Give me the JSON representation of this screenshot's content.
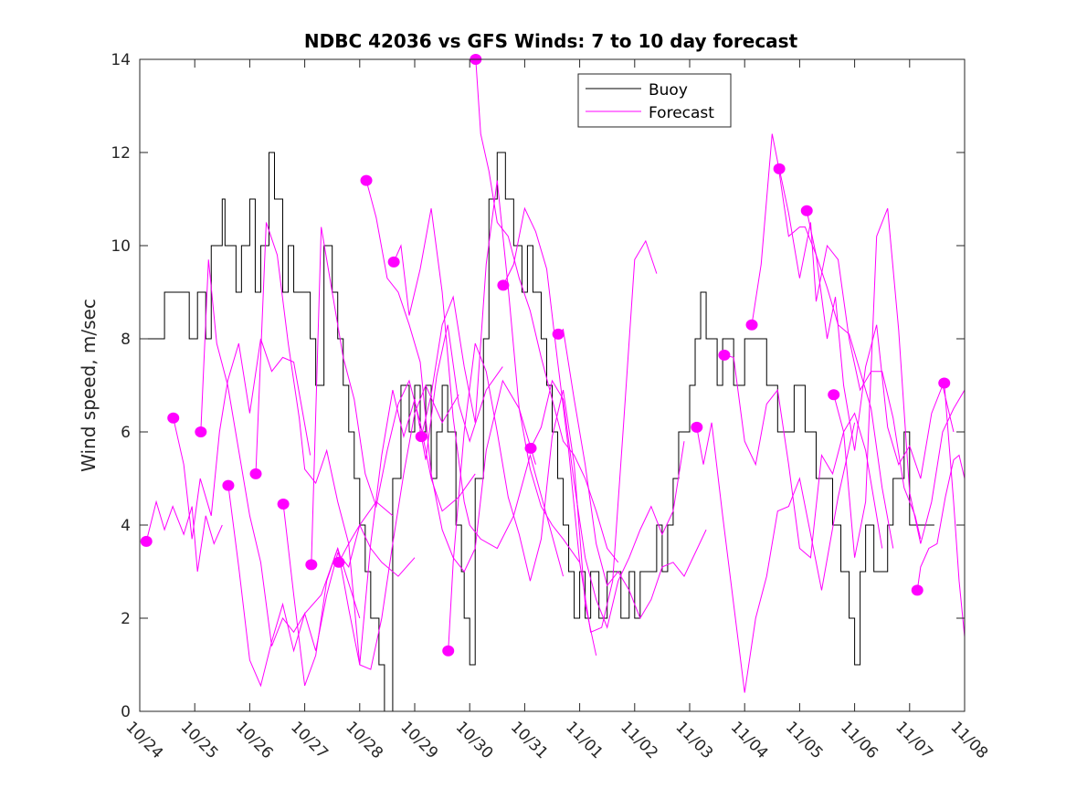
{
  "chart_data": {
    "type": "line",
    "title": "NDBC 42036 vs GFS Winds: 7 to 10 day forecast",
    "xlabel": "",
    "ylabel": "Wind speed, m/sec",
    "x_units": "days since 10/24",
    "xlim": [
      0,
      15
    ],
    "ylim": [
      0,
      14
    ],
    "x_ticks": [
      0,
      1,
      2,
      3,
      4,
      5,
      6,
      7,
      8,
      9,
      10,
      11,
      12,
      13,
      14,
      15
    ],
    "x_tick_labels": [
      "10/24",
      "10/25",
      "10/26",
      "10/27",
      "10/28",
      "10/29",
      "10/30",
      "10/31",
      "11/01",
      "11/02",
      "11/03",
      "11/04",
      "11/05",
      "11/06",
      "11/07",
      "11/08"
    ],
    "y_ticks": [
      0,
      2,
      4,
      6,
      8,
      10,
      12,
      14
    ],
    "y_tick_labels": [
      "0",
      "2",
      "4",
      "6",
      "8",
      "10",
      "12",
      "14"
    ],
    "grid": false,
    "legend": {
      "placement": "top-center",
      "entries": [
        {
          "label": "Buoy",
          "color": "#000000"
        },
        {
          "label": "Forecast",
          "color": "#ff00ff"
        }
      ]
    },
    "series": [
      {
        "name": "Buoy",
        "color": "#000000",
        "style": "step",
        "x": [
          0,
          0.4,
          0.45,
          0.9,
          1.0,
          1.05,
          1.2,
          1.3,
          1.5,
          1.55,
          1.7,
          1.75,
          1.85,
          2.0,
          2.1,
          2.2,
          2.35,
          2.45,
          2.6,
          2.7,
          2.8,
          2.95,
          3.0,
          3.1,
          3.2,
          3.35,
          3.5,
          3.6,
          3.7,
          3.8,
          3.9,
          4.0,
          4.1,
          4.2,
          4.35,
          4.45,
          4.6,
          4.75,
          4.9,
          5.0,
          5.1,
          5.2,
          5.3,
          5.4,
          5.5,
          5.6,
          5.75,
          5.85,
          5.9,
          6.0,
          6.1,
          6.25,
          6.35,
          6.5,
          6.65,
          6.8,
          6.95,
          7.05,
          7.15,
          7.3,
          7.4,
          7.5,
          7.6,
          7.7,
          7.8,
          7.9,
          8.0,
          8.1,
          8.2,
          8.35,
          8.5,
          8.6,
          8.75,
          8.9,
          9.0,
          9.1,
          9.25,
          9.4,
          9.5,
          9.6,
          9.7,
          9.8,
          9.9,
          10.0,
          10.1,
          10.2,
          10.3,
          10.4,
          10.5,
          10.6,
          10.7,
          10.8,
          10.9,
          11.0,
          11.2,
          11.4,
          11.6,
          11.75,
          11.9,
          12.0,
          12.1,
          12.2,
          12.3,
          12.5,
          12.6,
          12.75,
          12.9,
          13.0,
          13.1,
          13.2,
          13.35,
          13.5,
          13.6,
          13.7,
          13.8,
          13.9,
          14.0,
          14.1,
          14.2,
          14.35
        ],
        "values": [
          8,
          8,
          9,
          8,
          8,
          9,
          8,
          10,
          11,
          10,
          10,
          9,
          10,
          11,
          9,
          10,
          12,
          11,
          9,
          10,
          9,
          9,
          9,
          8,
          7,
          10,
          9,
          8,
          7,
          6,
          5,
          4,
          3,
          2,
          1,
          0,
          5,
          7,
          6,
          7,
          6,
          7,
          5,
          6,
          7,
          6,
          4,
          3,
          2,
          1,
          5,
          8,
          11,
          12,
          11,
          10,
          9,
          10,
          9,
          8,
          7,
          6,
          5,
          4,
          3,
          2,
          3,
          2,
          3,
          2,
          3,
          3,
          2,
          3,
          2,
          3,
          3,
          4,
          3,
          4,
          5,
          6,
          6,
          7,
          8,
          9,
          8,
          8,
          7,
          8,
          8,
          7,
          7,
          8,
          8,
          7,
          6,
          6,
          7,
          7,
          6,
          6,
          5,
          5,
          4,
          3,
          2,
          1,
          3,
          4,
          3,
          3,
          4,
          5,
          5,
          6,
          4,
          4,
          4,
          4
        ],
        "note": "approximate stepped hourly buoy record; x in days since 10/24"
      }
    ],
    "forecasts": [
      {
        "start_x": 0.12,
        "x": [
          0.12,
          0.3,
          0.45,
          0.6,
          0.8,
          0.95,
          1.05,
          1.2,
          1.35,
          1.5
        ],
        "values": [
          3.65,
          4.5,
          3.9,
          4.4,
          3.8,
          4.4,
          3.0,
          4.2,
          3.6,
          4.0
        ],
        "marker_value": 3.65
      },
      {
        "start_x": 0.61,
        "x": [
          0.61,
          0.8,
          0.95,
          1.1,
          1.3,
          1.45,
          1.6,
          1.8,
          2.0,
          2.2,
          2.4,
          2.6,
          2.8,
          3.1
        ],
        "values": [
          6.3,
          5.3,
          3.7,
          5.0,
          4.2,
          6.0,
          7.1,
          7.9,
          6.4,
          8.0,
          7.3,
          7.6,
          7.5,
          5.5
        ],
        "marker_value": 6.3
      },
      {
        "start_x": 1.11,
        "x": [
          1.11,
          1.25,
          1.4,
          1.6,
          1.8,
          2.0,
          2.2,
          2.4,
          2.6,
          2.8,
          3.0,
          3.3,
          3.6,
          4.0
        ],
        "values": [
          6.0,
          9.7,
          7.9,
          7.0,
          5.6,
          4.2,
          3.2,
          1.4,
          2.0,
          1.7,
          2.1,
          2.5,
          3.5,
          2.0
        ],
        "marker_value": 6.0
      },
      {
        "start_x": 1.61,
        "x": [
          1.61,
          1.8,
          2.0,
          2.2,
          2.4,
          2.6,
          2.8,
          3.0,
          3.2,
          3.4,
          3.6,
          3.8,
          4.0,
          4.3,
          4.6
        ],
        "values": [
          4.85,
          3.1,
          1.1,
          0.55,
          1.5,
          2.3,
          1.3,
          2.1,
          1.3,
          2.5,
          3.4,
          3.1,
          4.0,
          4.5,
          4.2
        ],
        "marker_value": 4.85
      },
      {
        "start_x": 2.11,
        "x": [
          2.11,
          2.3,
          2.5,
          2.7,
          2.9,
          3.0,
          3.2,
          3.4,
          3.6,
          3.8,
          4.0,
          4.2,
          4.4,
          4.7,
          5.0
        ],
        "values": [
          5.1,
          10.5,
          9.8,
          7.9,
          6.3,
          5.2,
          4.9,
          5.6,
          4.5,
          3.6,
          4.0,
          3.5,
          3.2,
          2.9,
          3.3
        ],
        "marker_value": 5.1
      },
      {
        "start_x": 2.61,
        "x": [
          2.61,
          2.8,
          3.0,
          3.2,
          3.4,
          3.6,
          3.8,
          4.0,
          4.2,
          4.4,
          4.6,
          4.8,
          5.0,
          5.2,
          5.5,
          5.8
        ],
        "values": [
          4.45,
          2.5,
          0.55,
          1.2,
          2.8,
          3.5,
          2.2,
          1.0,
          0.9,
          2.0,
          3.6,
          5.1,
          6.4,
          7.0,
          6.2,
          6.8
        ],
        "marker_value": 4.45
      },
      {
        "start_x": 3.12,
        "x": [
          3.12,
          3.3,
          3.5,
          3.7,
          3.9,
          4.1,
          4.3,
          4.5,
          4.7,
          4.9,
          5.1,
          5.3,
          5.5,
          5.8,
          6.1
        ],
        "values": [
          3.15,
          10.4,
          9.0,
          7.6,
          6.7,
          5.1,
          4.4,
          5.6,
          6.6,
          7.1,
          6.2,
          5.0,
          4.3,
          4.6,
          5.1
        ],
        "marker_value": 3.15
      },
      {
        "start_x": 3.62,
        "x": [
          3.62,
          3.8,
          4.0,
          4.2,
          4.4,
          4.6,
          4.8,
          5.0,
          5.2,
          5.4,
          5.6,
          5.8,
          6.0,
          6.3,
          6.6
        ],
        "values": [
          3.2,
          3.6,
          1.0,
          3.6,
          5.5,
          6.9,
          5.9,
          6.7,
          5.4,
          7.2,
          8.3,
          6.6,
          5.8,
          6.9,
          7.4
        ],
        "marker_value": 3.2
      },
      {
        "start_x": 4.12,
        "x": [
          4.12,
          4.3,
          4.5,
          4.7,
          4.9,
          5.1,
          5.3,
          5.5,
          5.7,
          5.9,
          6.1,
          6.3,
          6.6,
          6.9,
          7.2
        ],
        "values": [
          11.4,
          10.6,
          9.3,
          9.0,
          8.3,
          7.5,
          5.1,
          3.9,
          3.3,
          3.0,
          3.5,
          5.6,
          7.1,
          6.5,
          5.3
        ],
        "marker_value": 11.4
      },
      {
        "start_x": 4.62,
        "x": [
          4.62,
          4.75,
          4.9,
          5.1,
          5.3,
          5.5,
          5.7,
          5.9,
          6.0,
          6.2,
          6.5,
          6.8,
          7.1,
          7.4,
          7.7
        ],
        "values": [
          9.65,
          10.0,
          8.5,
          9.5,
          10.8,
          9.0,
          6.3,
          4.5,
          4.0,
          3.7,
          3.5,
          4.2,
          5.5,
          4.2,
          2.9
        ],
        "marker_value": 9.65
      },
      {
        "start_x": 5.12,
        "x": [
          5.12,
          5.3,
          5.5,
          5.7,
          5.9,
          6.1,
          6.3,
          6.5,
          6.7,
          6.9,
          7.1,
          7.3,
          7.5,
          7.7,
          8.0
        ],
        "values": [
          5.9,
          6.8,
          8.3,
          8.9,
          7.4,
          6.2,
          9.6,
          11.4,
          9.1,
          6.5,
          5.2,
          4.4,
          4.0,
          3.7,
          3.2
        ],
        "marker_value": 5.9
      },
      {
        "start_x": 5.61,
        "x": [
          5.61,
          5.7,
          5.9,
          6.1,
          6.3,
          6.5,
          6.7,
          6.9,
          7.1,
          7.3,
          7.5,
          7.7,
          7.9,
          8.1,
          8.3
        ],
        "values": [
          1.3,
          3.2,
          6.0,
          7.9,
          7.3,
          6.0,
          4.6,
          3.8,
          2.8,
          3.7,
          5.9,
          6.9,
          5.3,
          2.3,
          1.2
        ],
        "marker_value": 1.3
      },
      {
        "start_x": 6.11,
        "x": [
          6.11,
          6.2,
          6.35,
          6.5,
          6.7,
          6.9,
          7.1,
          7.3,
          7.5,
          7.7,
          7.9,
          8.1,
          8.3,
          8.5,
          8.7
        ],
        "values": [
          14.0,
          12.4,
          11.6,
          10.5,
          10.2,
          9.3,
          8.6,
          7.6,
          6.7,
          5.8,
          5.5,
          5.0,
          4.3,
          3.5,
          3.2
        ],
        "marker_value": 14.0
      },
      {
        "start_x": 6.61,
        "x": [
          6.61,
          6.8,
          7.0,
          7.2,
          7.4,
          7.6,
          7.8,
          8.0,
          8.2,
          8.4,
          8.6,
          8.8,
          9.0,
          9.2,
          9.4
        ],
        "values": [
          9.15,
          9.6,
          10.8,
          10.3,
          9.5,
          7.5,
          5.6,
          3.2,
          1.7,
          1.8,
          2.8,
          6.2,
          9.7,
          10.1,
          9.4
        ],
        "marker_value": 9.15
      },
      {
        "start_x": 7.11,
        "x": [
          7.11,
          7.3,
          7.5,
          7.7,
          7.9,
          8.1,
          8.3,
          8.5,
          8.7,
          8.9,
          9.1,
          9.3,
          9.5,
          9.7,
          9.9
        ],
        "values": [
          5.65,
          6.1,
          7.1,
          6.7,
          4.9,
          3.3,
          2.4,
          1.8,
          2.8,
          3.3,
          3.9,
          4.4,
          3.8,
          4.3,
          5.8
        ],
        "marker_value": 5.65
      },
      {
        "start_x": 7.61,
        "x": [
          7.61,
          7.7,
          7.9,
          8.1,
          8.3,
          8.5,
          8.7,
          8.9,
          9.1,
          9.3,
          9.5,
          9.7,
          9.9,
          10.1,
          10.3
        ],
        "values": [
          8.1,
          8.2,
          6.7,
          5.3,
          3.6,
          2.7,
          3.0,
          2.6,
          2.0,
          2.4,
          3.1,
          3.2,
          2.9,
          3.4,
          3.9
        ],
        "marker_value": 8.1
      },
      {
        "start_x": 10.13,
        "x": [
          10.13,
          10.25,
          10.4,
          10.6,
          10.8,
          11.0,
          11.2,
          11.4,
          11.6,
          11.8,
          12.0,
          12.2,
          12.4,
          12.7,
          13.0
        ],
        "values": [
          6.1,
          5.3,
          6.2,
          4.2,
          2.3,
          0.4,
          2.0,
          2.9,
          4.3,
          4.4,
          5.0,
          3.8,
          2.6,
          4.6,
          6.2
        ],
        "marker_value": 6.1
      },
      {
        "start_x": 10.63,
        "x": [
          10.63,
          10.8,
          11.0,
          11.2,
          11.4,
          11.6,
          11.8,
          12.0,
          12.2,
          12.4,
          12.6,
          12.8,
          13.0,
          13.2,
          13.5
        ],
        "values": [
          7.65,
          7.6,
          5.8,
          5.3,
          6.6,
          6.9,
          5.3,
          3.5,
          3.3,
          5.5,
          5.1,
          6.0,
          6.4,
          5.6,
          3.5
        ],
        "marker_value": 7.65
      },
      {
        "start_x": 11.13,
        "x": [
          11.13,
          11.3,
          11.5,
          11.6,
          11.8,
          12.0,
          12.1,
          12.3,
          12.5,
          12.7,
          12.9,
          13.1,
          13.3,
          13.5,
          13.7
        ],
        "values": [
          8.3,
          9.6,
          12.4,
          11.8,
          10.2,
          10.4,
          10.4,
          9.8,
          9.1,
          8.3,
          8.1,
          7.3,
          6.5,
          4.8,
          3.5
        ],
        "marker_value": 8.3
      },
      {
        "start_x": 11.63,
        "x": [
          11.63,
          11.8,
          12.0,
          12.2,
          12.3,
          12.5,
          12.7,
          12.9,
          13.1,
          13.3,
          13.5,
          13.7,
          13.9,
          14.1,
          14.2
        ],
        "values": [
          11.65,
          10.7,
          9.3,
          10.5,
          8.8,
          10.0,
          9.7,
          8.0,
          6.9,
          7.3,
          7.3,
          6.3,
          4.8,
          4.2,
          3.7
        ],
        "marker_value": 11.65
      },
      {
        "start_x": 12.13,
        "x": [
          12.13,
          12.3,
          12.5,
          12.65,
          12.8,
          13.0,
          13.2,
          13.4,
          13.6,
          13.8,
          14.0,
          14.2,
          14.4,
          14.6,
          14.8
        ],
        "values": [
          10.75,
          9.8,
          8.0,
          8.9,
          7.0,
          5.6,
          7.4,
          8.3,
          6.1,
          5.3,
          5.7,
          5.0,
          6.4,
          7.0,
          6.0
        ],
        "marker_value": 10.75
      },
      {
        "start_x": 12.62,
        "x": [
          12.62,
          12.8,
          13.0,
          13.2,
          13.4,
          13.6,
          13.8,
          14.0,
          14.2,
          14.4,
          14.6,
          14.8,
          15.0
        ],
        "values": [
          6.8,
          6.0,
          3.3,
          4.5,
          10.2,
          10.8,
          8.2,
          4.7,
          3.6,
          4.5,
          6.0,
          6.5,
          6.9
        ],
        "marker_value": 6.8
      },
      {
        "start_x": 14.14,
        "x": [
          14.14,
          14.2,
          14.35,
          14.5,
          14.65,
          14.8,
          14.9,
          15.0
        ],
        "values": [
          2.6,
          3.1,
          3.5,
          3.6,
          4.6,
          5.4,
          5.5,
          5.0
        ],
        "marker_value": 2.6
      },
      {
        "start_x": 14.63,
        "x": [
          14.63,
          14.7,
          14.8,
          14.9,
          15.0
        ],
        "values": [
          7.05,
          6.0,
          4.5,
          2.8,
          1.6
        ],
        "marker_value": 7.05
      }
    ]
  }
}
